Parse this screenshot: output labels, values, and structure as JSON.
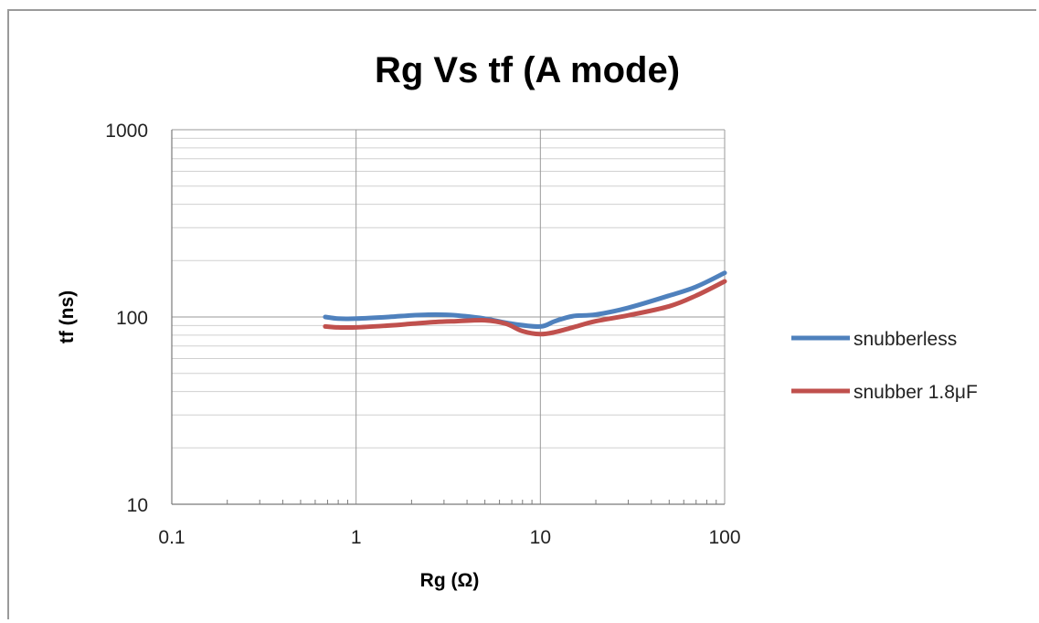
{
  "chart_data": {
    "type": "line",
    "title": "Rg Vs tf (A mode)",
    "xlabel": "Rg (Ω)",
    "ylabel": "tf (ns)",
    "xscale": "log",
    "yscale": "log",
    "xlim": [
      0.1,
      100
    ],
    "ylim": [
      10,
      1000
    ],
    "x_ticks": [
      "0.1",
      "1",
      "10",
      "100"
    ],
    "y_ticks": [
      "10",
      "100",
      "1000"
    ],
    "grid": "on",
    "legend_position": "right",
    "series": [
      {
        "name": "snubberless",
        "color": "#4f81bd",
        "x": [
          0.68,
          0.8,
          1.0,
          1.5,
          2.0,
          2.7,
          3.5,
          5.0,
          7.0,
          10.0,
          12.0,
          15.0,
          20.0,
          30.0,
          50.0,
          70.0,
          100.0
        ],
        "y": [
          100,
          98,
          98,
          100,
          102,
          103,
          102,
          98,
          92,
          89,
          95,
          101,
          103,
          112,
          130,
          145,
          172
        ]
      },
      {
        "name": "snubber 1.8μF",
        "color": "#c0504d",
        "x": [
          0.68,
          0.8,
          1.0,
          1.5,
          2.0,
          2.7,
          3.5,
          5.0,
          6.5,
          8.0,
          10.0,
          12.0,
          15.0,
          20.0,
          30.0,
          50.0,
          70.0,
          100.0
        ],
        "y": [
          89,
          88,
          88,
          90,
          92,
          94,
          95,
          96,
          92,
          84,
          81,
          83,
          88,
          95,
          102,
          114,
          130,
          155
        ]
      }
    ]
  }
}
